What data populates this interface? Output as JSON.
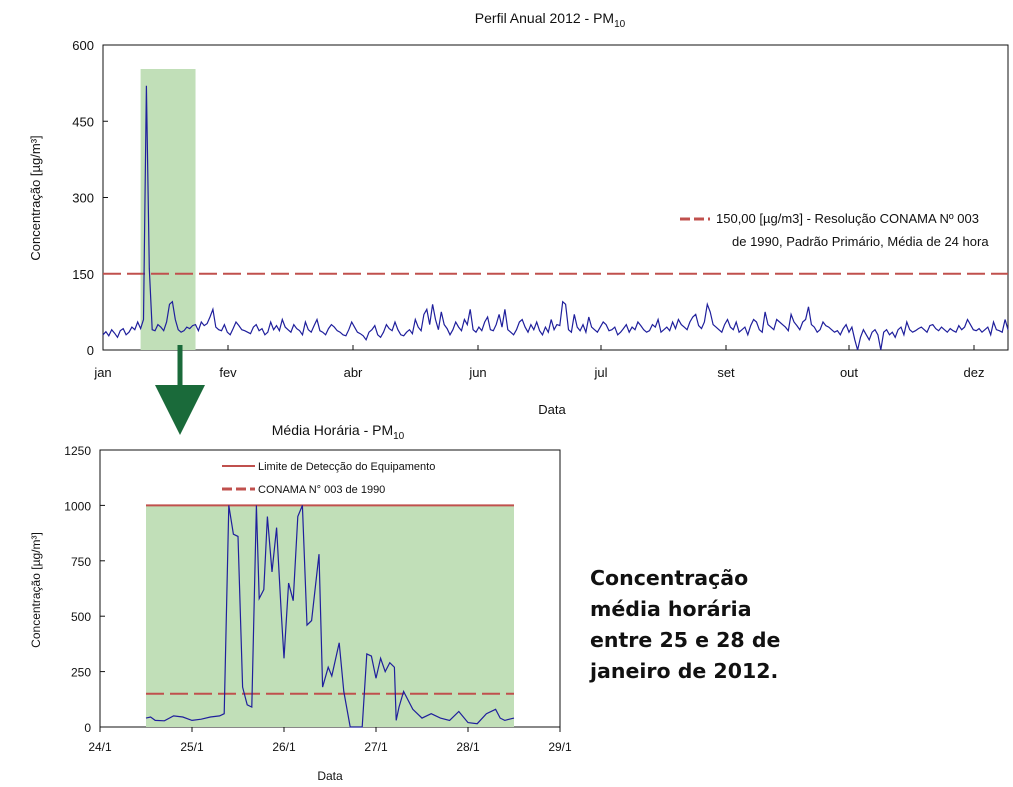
{
  "chart_data": [
    {
      "type": "line",
      "title": "Perfil Anual 2012 - PM",
      "title_sub": "10",
      "xlabel": "Data",
      "ylabel": "Concentração [µg/m³]",
      "ylim": [
        0,
        600
      ],
      "yticks": [
        "0",
        "150",
        "300",
        "450",
        "600"
      ],
      "xticks": [
        "jan",
        "fev",
        "abr",
        "jun",
        "jul",
        "set",
        "out",
        "dez"
      ],
      "highlight": {
        "from": 13,
        "to": 32,
        "color": "#c1dfb8"
      },
      "legend": [
        {
          "label_lines": [
            "150,00 [µg/m3] - Resolução CONAMA Nº 003",
            "de 1990, Padrão Primário, Média de 24 hora"
          ],
          "color": "#c0504d",
          "style": "dashed"
        }
      ],
      "series": [
        {
          "values": [
            150,
            150
          ],
          "color": "#c0504d",
          "style": "dashed"
        },
        {
          "color": "#1f1f9c",
          "values": [
            30,
            36,
            28,
            40,
            33,
            25,
            38,
            42,
            30,
            35,
            45,
            40,
            55,
            42,
            60,
            520,
            160,
            40,
            38,
            50,
            45,
            38,
            55,
            90,
            95,
            60,
            40,
            35,
            38,
            45,
            42,
            48,
            50,
            38,
            55,
            48,
            52,
            65,
            80,
            45,
            40,
            38,
            50,
            35,
            30,
            42,
            55,
            48,
            40,
            38,
            35,
            32,
            45,
            50,
            38,
            42,
            30,
            35,
            55,
            40,
            48,
            38,
            60,
            45,
            40,
            35,
            50,
            42,
            38,
            30,
            55,
            40,
            35,
            48,
            60,
            38,
            35,
            30,
            42,
            50,
            45,
            38,
            35,
            30,
            28,
            40,
            55,
            45,
            35,
            32,
            28,
            20,
            35,
            40,
            48,
            30,
            25,
            35,
            50,
            42,
            38,
            55,
            40,
            30,
            28,
            35,
            40,
            32,
            60,
            45,
            38,
            70,
            80,
            50,
            90,
            60,
            40,
            75,
            50,
            42,
            30,
            40,
            55,
            45,
            38,
            60,
            50,
            80,
            40,
            35,
            45,
            38,
            55,
            65,
            40,
            38,
            50,
            70,
            45,
            80,
            40,
            35,
            30,
            40,
            55,
            60,
            45,
            35,
            50,
            40,
            55,
            38,
            30,
            45,
            35,
            60,
            40,
            50,
            48,
            95,
            90,
            40,
            35,
            70,
            45,
            38,
            50,
            35,
            65,
            45,
            40,
            35,
            45,
            55,
            50,
            38,
            40,
            45,
            30,
            35,
            42,
            50,
            35,
            45,
            40,
            55,
            48,
            40,
            35,
            38,
            50,
            45,
            60,
            35,
            40,
            45,
            38,
            55,
            42,
            60,
            50,
            45,
            40,
            55,
            65,
            70,
            48,
            42,
            55,
            90,
            75,
            50,
            45,
            40,
            35,
            50,
            60,
            45,
            40,
            55,
            35,
            40,
            45,
            30,
            48,
            60,
            55,
            40,
            35,
            75,
            50,
            45,
            40,
            60,
            55,
            50,
            45,
            38,
            70,
            55,
            48,
            40,
            55,
            60,
            85,
            50,
            45,
            35,
            40,
            55,
            48,
            45,
            40,
            35,
            38,
            30,
            42,
            50,
            35,
            45,
            20,
            0,
            25,
            40,
            30,
            20,
            35,
            40,
            30,
            0,
            35,
            40,
            30,
            35,
            25,
            40,
            45,
            30,
            55,
            40,
            35,
            38,
            42,
            45,
            40,
            35,
            48,
            50,
            42,
            38,
            45,
            40,
            35,
            42,
            38,
            35,
            48,
            40,
            45,
            60,
            50,
            40,
            38,
            42,
            35,
            40,
            45,
            30,
            55,
            40,
            38,
            35,
            60,
            40
          ]
        }
      ]
    },
    {
      "type": "line",
      "title": "Média Horária - PM",
      "title_sub": "10",
      "xlabel": "Data",
      "ylabel": "Concentração [µg/m³]",
      "ylim": [
        0,
        1250
      ],
      "yticks": [
        "0",
        "250",
        "500",
        "750",
        "1000",
        "1250"
      ],
      "xlim": [
        "24/1",
        "29/1"
      ],
      "xticks": [
        "24/1",
        "25/1",
        "26/1",
        "27/1",
        "28/1",
        "29/1"
      ],
      "highlight": {
        "from": 0.5,
        "to": 4.5,
        "color": "#c1dfb8"
      },
      "legend": [
        {
          "label": "Limite de Detecção do Equipamento",
          "color": "#c0504d",
          "style": "solid"
        },
        {
          "label": "CONAMA N° 003 de 1990",
          "color": "#c0504d",
          "style": "dashed"
        }
      ],
      "series": [
        {
          "values": [
            1000,
            1000
          ],
          "color": "#c0504d",
          "style": "solid"
        },
        {
          "values": [
            150,
            150
          ],
          "color": "#c0504d",
          "style": "dashed"
        },
        {
          "color": "#1f1f9c",
          "points": [
            [
              0.5,
              40
            ],
            [
              0.55,
              45
            ],
            [
              0.6,
              30
            ],
            [
              0.7,
              28
            ],
            [
              0.8,
              50
            ],
            [
              0.9,
              45
            ],
            [
              1.0,
              30
            ],
            [
              1.1,
              35
            ],
            [
              1.2,
              45
            ],
            [
              1.3,
              50
            ],
            [
              1.35,
              60
            ],
            [
              1.4,
              1000
            ],
            [
              1.45,
              870
            ],
            [
              1.5,
              860
            ],
            [
              1.55,
              180
            ],
            [
              1.6,
              100
            ],
            [
              1.65,
              90
            ],
            [
              1.7,
              1000
            ],
            [
              1.73,
              580
            ],
            [
              1.78,
              620
            ],
            [
              1.82,
              950
            ],
            [
              1.87,
              700
            ],
            [
              1.92,
              900
            ],
            [
              1.97,
              520
            ],
            [
              2.0,
              310
            ],
            [
              2.05,
              650
            ],
            [
              2.1,
              570
            ],
            [
              2.15,
              950
            ],
            [
              2.2,
              1000
            ],
            [
              2.25,
              460
            ],
            [
              2.3,
              480
            ],
            [
              2.38,
              780
            ],
            [
              2.42,
              180
            ],
            [
              2.48,
              270
            ],
            [
              2.52,
              230
            ],
            [
              2.6,
              380
            ],
            [
              2.65,
              160
            ],
            [
              2.72,
              0
            ],
            [
              2.8,
              0
            ],
            [
              2.85,
              0
            ],
            [
              2.9,
              330
            ],
            [
              2.95,
              320
            ],
            [
              3.0,
              220
            ],
            [
              3.05,
              310
            ],
            [
              3.1,
              250
            ],
            [
              3.15,
              290
            ],
            [
              3.2,
              270
            ],
            [
              3.22,
              30
            ],
            [
              3.25,
              90
            ],
            [
              3.3,
              160
            ],
            [
              3.4,
              80
            ],
            [
              3.5,
              40
            ],
            [
              3.6,
              60
            ],
            [
              3.7,
              40
            ],
            [
              3.8,
              30
            ],
            [
              3.9,
              70
            ],
            [
              4.0,
              20
            ],
            [
              4.1,
              15
            ],
            [
              4.2,
              60
            ],
            [
              4.3,
              80
            ],
            [
              4.35,
              40
            ],
            [
              4.4,
              30
            ],
            [
              4.45,
              35
            ],
            [
              4.5,
              40
            ]
          ]
        }
      ]
    }
  ],
  "caption_lines": [
    "Concentração",
    "média horária",
    "entre 25 e 28 de",
    "janeiro de 2012."
  ]
}
